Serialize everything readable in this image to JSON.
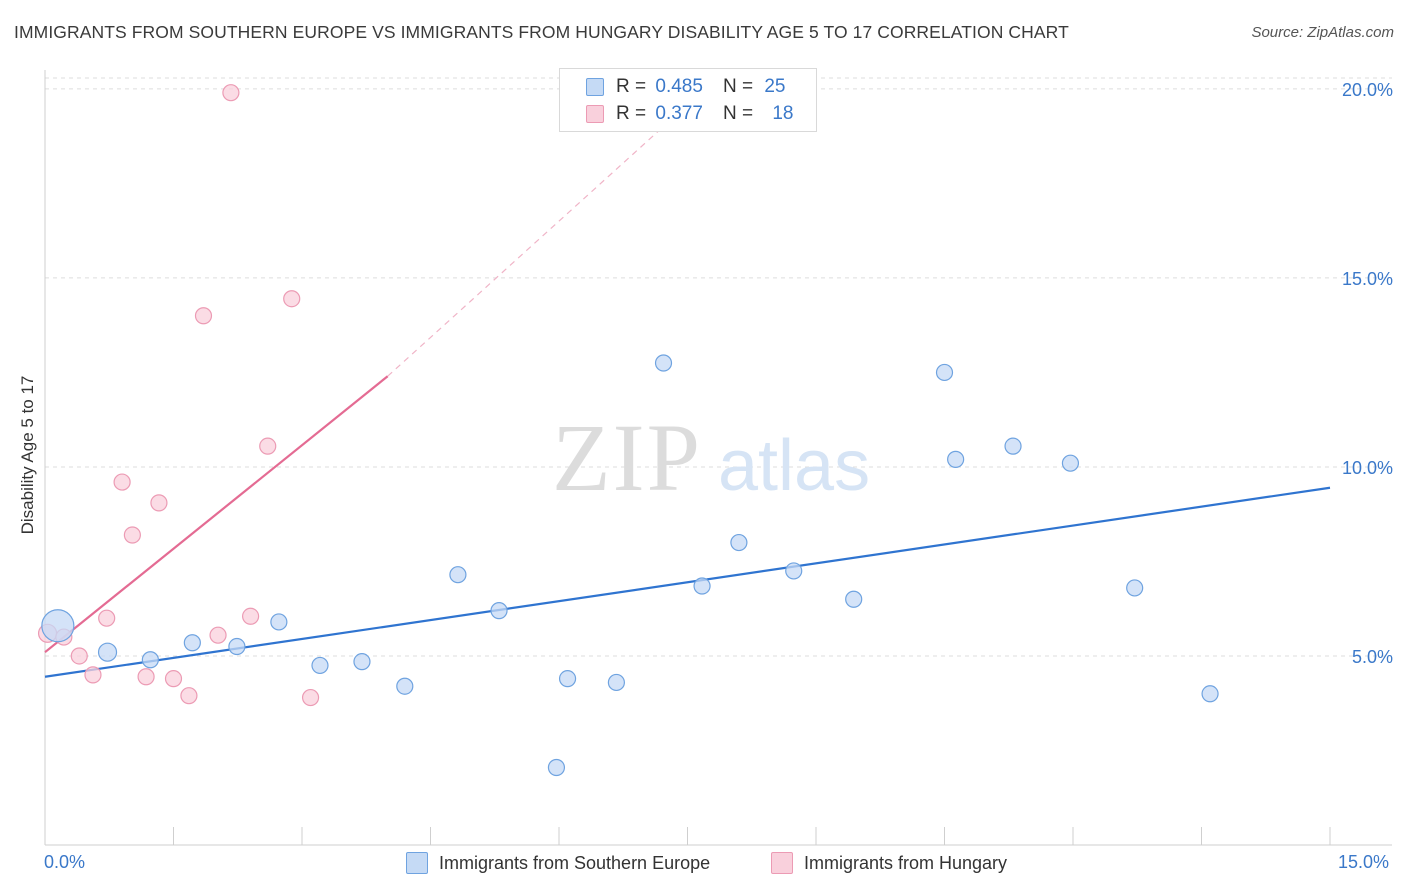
{
  "title": "IMMIGRANTS FROM SOUTHERN EUROPE VS IMMIGRANTS FROM HUNGARY DISABILITY AGE 5 TO 17 CORRELATION CHART",
  "source": "Source: ZipAtlas.com",
  "watermark": {
    "zip": "ZIP",
    "atlas": "atlas"
  },
  "legend": {
    "series1": {
      "r_label": "R =",
      "r_value": "0.485",
      "n_label": "N =",
      "n_value": "25"
    },
    "series2": {
      "r_label": "R =",
      "r_value": "0.377",
      "n_label": "N =",
      "n_value": "18"
    }
  },
  "bottom_legend": {
    "series1": "Immigrants from Southern Europe",
    "series2": "Immigrants from Hungary"
  },
  "chart_data": {
    "type": "scatter",
    "title": "IMMIGRANTS FROM SOUTHERN EUROPE VS IMMIGRANTS FROM HUNGARY DISABILITY AGE 5 TO 17 CORRELATION CHART",
    "xlabel": "",
    "ylabel": "Disability Age 5 to 17",
    "xlim": [
      0,
      15
    ],
    "ylim": [
      0,
      20.5
    ],
    "x_tick_labels": [
      "0.0%",
      "15.0%"
    ],
    "y_ticks": [
      5,
      10,
      15,
      20
    ],
    "y_tick_labels": [
      "5.0%",
      "10.0%",
      "15.0%",
      "20.0%"
    ],
    "colors": {
      "series1": "#6fa3e0",
      "series1_fill": "#c5daf5",
      "series1_line": "#2f74d0",
      "series2": "#ec9bb4",
      "series2_fill": "#f9d0dc",
      "series2_line": "#e46b93",
      "axis_label": "#3a78c9"
    },
    "series": [
      {
        "name": "Immigrants from Southern Europe",
        "R": 0.485,
        "N": 25,
        "x": [
          0.15,
          0.73,
          1.23,
          1.72,
          2.24,
          2.73,
          3.21,
          3.7,
          4.2,
          4.82,
          5.3,
          5.97,
          6.1,
          6.67,
          7.22,
          7.67,
          8.1,
          8.74,
          9.44,
          10.5,
          10.63,
          11.3,
          11.97,
          12.72,
          13.6
        ],
        "y": [
          5.8,
          5.1,
          4.9,
          5.35,
          5.25,
          5.9,
          4.75,
          4.85,
          4.2,
          7.15,
          6.2,
          2.05,
          4.4,
          4.3,
          12.75,
          6.85,
          8.0,
          7.25,
          6.5,
          12.5,
          10.2,
          10.55,
          10.1,
          6.8,
          4.0
        ],
        "sizes": [
          16,
          9,
          8,
          8,
          8,
          8,
          8,
          8,
          8,
          8,
          8,
          8,
          8,
          8,
          8,
          8,
          8,
          8,
          8,
          8,
          8,
          8,
          8,
          8,
          8
        ],
        "trend": {
          "x": [
            0,
            15
          ],
          "y": [
            4.45,
            9.45
          ]
        }
      },
      {
        "name": "Immigrants from Hungary",
        "R": 0.377,
        "N": 18,
        "x": [
          0.03,
          0.22,
          0.4,
          0.56,
          0.72,
          0.9,
          1.02,
          1.18,
          1.33,
          1.5,
          1.68,
          1.85,
          2.02,
          2.17,
          2.4,
          2.6,
          2.88,
          3.1
        ],
        "y": [
          5.6,
          5.5,
          5.0,
          4.5,
          6.0,
          9.6,
          8.2,
          4.45,
          9.05,
          4.4,
          3.95,
          14.0,
          5.55,
          19.9,
          6.05,
          10.55,
          14.45,
          3.9
        ],
        "sizes": [
          9,
          8,
          8,
          8,
          8,
          8,
          8,
          8,
          8,
          8,
          8,
          8,
          8,
          8,
          8,
          8,
          8,
          8
        ],
        "trend": {
          "x": [
            0,
            4
          ],
          "y": [
            5.1,
            12.4
          ]
        },
        "trend_dashed": {
          "x": [
            4,
            7.9
          ],
          "y": [
            12.4,
            20.4
          ]
        }
      }
    ]
  }
}
